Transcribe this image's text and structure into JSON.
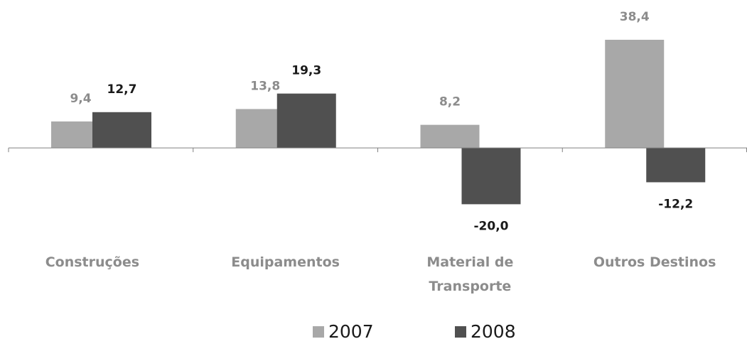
{
  "chart_data": {
    "type": "bar",
    "categories": [
      "Construções",
      "Equipamentos",
      "Material de Transporte",
      "Outros Destinos"
    ],
    "series": [
      {
        "name": "2007",
        "color": "#a8a8a8",
        "values": [
          9.4,
          13.8,
          8.2,
          38.4
        ],
        "value_labels": [
          "9,4",
          "13,8",
          "8,2",
          "38,4"
        ]
      },
      {
        "name": "2008",
        "color": "#505050",
        "values": [
          12.7,
          19.3,
          -20.0,
          -12.2
        ],
        "value_labels": [
          "12,7",
          "19,3",
          "-20,0",
          "-12,2"
        ]
      }
    ],
    "ylim": [
      -30,
      50
    ],
    "legend": "bottom"
  }
}
